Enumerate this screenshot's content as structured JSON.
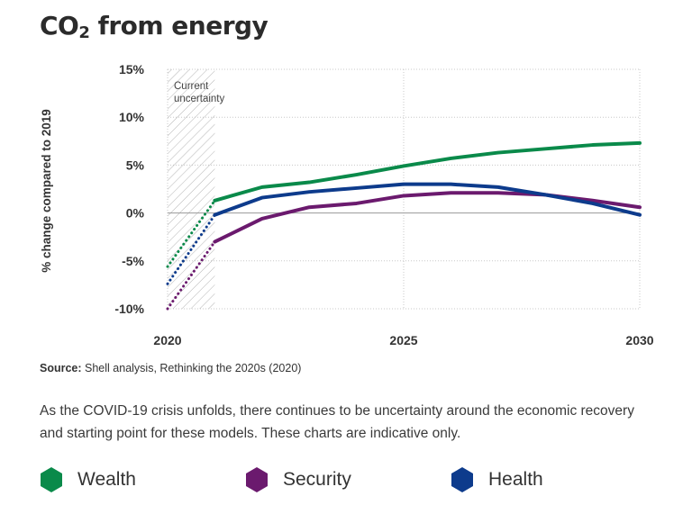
{
  "title_main": "CO",
  "title_sub": "2",
  "title_rest": " from energy",
  "source_label": "Source:",
  "source_text": " Shell analysis, Rethinking the 2020s (2020)",
  "description": "As the COVID-19 crisis unfolds, there continues to be uncertainty around the economic recovery and starting point for these models. These charts are indicative only.",
  "chart_data": {
    "type": "line",
    "title": "CO2 from energy",
    "ylabel": "% change compared to 2019",
    "xlabel": "",
    "ylim": [
      -10,
      15
    ],
    "xlim": [
      2020,
      2030
    ],
    "yticks": [
      15,
      10,
      5,
      0,
      -5,
      -10
    ],
    "ytick_labels": [
      "15%",
      "10%",
      "5%",
      "0%",
      "-5%",
      "-10%"
    ],
    "xticks": [
      2020,
      2025,
      2030
    ],
    "xtick_labels": [
      "2020",
      "2025",
      "2030"
    ],
    "grid": "vertical dotted at 2020, 2025, 2030; horizontal solid at 0%",
    "uncertainty_band": {
      "x_start": 2020,
      "x_end": 2021,
      "label_line1": "Current",
      "label_line2": "uncertainty"
    },
    "series": [
      {
        "name": "Wealth",
        "color": "#0a8a4a",
        "dotted": [
          [
            2020,
            -5.6
          ],
          [
            2021,
            1.3
          ]
        ],
        "x": [
          2021,
          2022,
          2023,
          2024,
          2025,
          2026,
          2027,
          2028,
          2029,
          2030
        ],
        "values": [
          1.3,
          2.7,
          3.2,
          4.0,
          4.9,
          5.7,
          6.3,
          6.7,
          7.1,
          7.3
        ]
      },
      {
        "name": "Security",
        "color": "#6b1a6e",
        "dotted": [
          [
            2020,
            -10.0
          ],
          [
            2021,
            -3.0
          ]
        ],
        "x": [
          2021,
          2022,
          2023,
          2024,
          2025,
          2026,
          2027,
          2028,
          2029,
          2030
        ],
        "values": [
          -3.0,
          -0.6,
          0.6,
          1.0,
          1.8,
          2.1,
          2.1,
          1.9,
          1.3,
          0.6
        ]
      },
      {
        "name": "Health",
        "color": "#0d3b8c",
        "dotted": [
          [
            2020,
            -7.4
          ],
          [
            2021,
            -0.2
          ]
        ],
        "x": [
          2021,
          2022,
          2023,
          2024,
          2025,
          2026,
          2027,
          2028,
          2029,
          2030
        ],
        "values": [
          -0.2,
          1.6,
          2.2,
          2.6,
          3.0,
          3.0,
          2.7,
          1.9,
          1.0,
          -0.2
        ]
      }
    ]
  },
  "legend": [
    {
      "label": "Wealth",
      "color": "#0a8a4a",
      "icon": "hexagon-icon"
    },
    {
      "label": "Security",
      "color": "#6b1a6e",
      "icon": "hexagon-icon"
    },
    {
      "label": "Health",
      "color": "#0d3b8c",
      "icon": "hexagon-icon"
    }
  ]
}
